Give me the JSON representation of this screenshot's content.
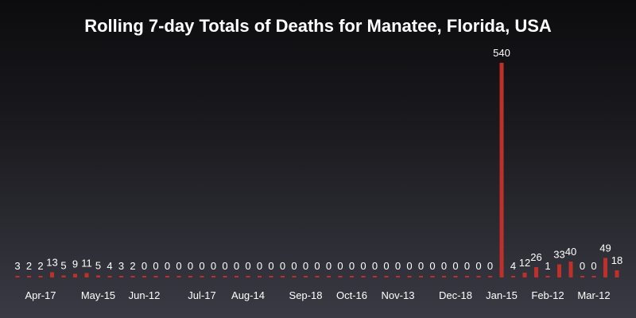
{
  "chart_data": {
    "type": "bar",
    "title": "Rolling 7-day Totals of Deaths for Manatee, Florida, USA",
    "xlabel": "",
    "ylabel": "",
    "grid": false,
    "bar_color": "#c0302b",
    "ylim": [
      0,
      560
    ],
    "tick_labels": [
      {
        "index": 2,
        "label": "Apr-17"
      },
      {
        "index": 7,
        "label": "May-15"
      },
      {
        "index": 11,
        "label": "Jun-12"
      },
      {
        "index": 16,
        "label": "Jul-17"
      },
      {
        "index": 20,
        "label": "Aug-14"
      },
      {
        "index": 25,
        "label": "Sep-18"
      },
      {
        "index": 29,
        "label": "Oct-16"
      },
      {
        "index": 33,
        "label": "Nov-13"
      },
      {
        "index": 38,
        "label": "Dec-18"
      },
      {
        "index": 42,
        "label": "Jan-15"
      },
      {
        "index": 46,
        "label": "Feb-12"
      },
      {
        "index": 50,
        "label": "Mar-12"
      }
    ],
    "values": [
      3,
      2,
      2,
      13,
      5,
      9,
      11,
      5,
      4,
      3,
      2,
      0,
      0,
      0,
      0,
      0,
      0,
      0,
      0,
      0,
      0,
      0,
      0,
      0,
      0,
      0,
      0,
      0,
      0,
      0,
      0,
      0,
      0,
      0,
      0,
      0,
      0,
      0,
      0,
      0,
      0,
      0,
      540,
      4,
      12,
      26,
      1,
      33,
      40,
      0,
      0,
      49,
      18
    ]
  }
}
